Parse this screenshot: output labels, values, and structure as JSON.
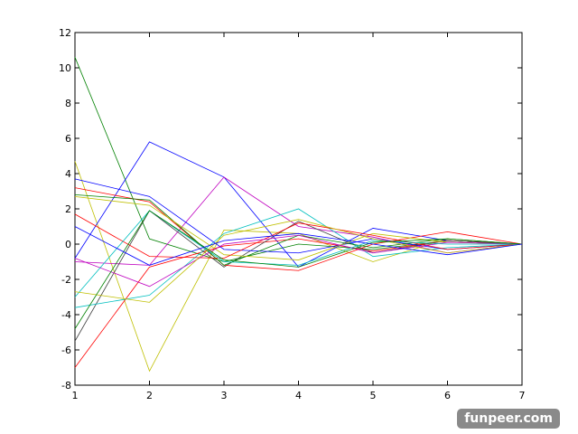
{
  "chart_data": {
    "type": "line",
    "x": [
      1,
      2,
      3,
      4,
      5,
      6,
      7
    ],
    "xlim": [
      1,
      7
    ],
    "xticks": [
      1,
      2,
      3,
      4,
      5,
      6,
      7
    ],
    "ylim": [
      -8,
      12
    ],
    "yticks": [
      -8,
      -6,
      -4,
      -2,
      0,
      2,
      4,
      6,
      8,
      10,
      12
    ],
    "series": [
      {
        "color": "#008000",
        "values": [
          10.6,
          0.3,
          -1.0,
          0.0,
          -0.3,
          0.2,
          0
        ]
      },
      {
        "color": "#bfbf00",
        "values": [
          4.7,
          -7.2,
          0.8,
          0.6,
          -1.0,
          0.3,
          0
        ]
      },
      {
        "color": "#0000ff",
        "values": [
          -0.8,
          5.8,
          3.8,
          -1.3,
          0.9,
          0.2,
          0
        ]
      },
      {
        "color": "#bf00bf",
        "values": [
          -1.0,
          -1.2,
          3.8,
          1.0,
          0.4,
          -0.5,
          0
        ]
      },
      {
        "color": "#ff0000",
        "values": [
          -7.0,
          -1.3,
          -0.1,
          0.3,
          -0.4,
          0.2,
          0
        ]
      },
      {
        "color": "#404040",
        "values": [
          -5.5,
          1.9,
          -1.3,
          1.3,
          -0.5,
          0.2,
          0
        ]
      },
      {
        "color": "#00bfbf",
        "values": [
          -3.6,
          -2.9,
          0.6,
          2.0,
          -0.7,
          -0.2,
          0
        ]
      },
      {
        "color": "#0000ff",
        "values": [
          3.7,
          2.7,
          -0.3,
          -0.5,
          0.3,
          -0.3,
          0
        ]
      },
      {
        "color": "#ff0000",
        "values": [
          3.2,
          2.4,
          -1.2,
          -1.5,
          0.0,
          0.7,
          0
        ]
      },
      {
        "color": "#008000",
        "values": [
          2.8,
          2.5,
          -1.2,
          0.5,
          -0.2,
          0.3,
          0
        ]
      },
      {
        "color": "#bfbf00",
        "values": [
          2.7,
          2.2,
          -0.6,
          -0.9,
          0.6,
          0.1,
          0
        ]
      },
      {
        "color": "#ff0000",
        "values": [
          1.7,
          -0.7,
          -0.8,
          1.2,
          0.5,
          -0.3,
          0
        ]
      },
      {
        "color": "#bf00bf",
        "values": [
          -0.8,
          -2.4,
          0.0,
          0.5,
          -0.5,
          0.1,
          0
        ]
      },
      {
        "color": "#00bfbf",
        "values": [
          -3.0,
          1.9,
          -1.0,
          -1.2,
          0.2,
          0.0,
          0
        ]
      },
      {
        "color": "#bfbf00",
        "values": [
          -2.7,
          -3.3,
          0.5,
          1.4,
          0.3,
          -0.5,
          0
        ]
      },
      {
        "color": "#008000",
        "values": [
          -4.8,
          1.9,
          -0.9,
          -1.3,
          0.1,
          0.3,
          0
        ]
      },
      {
        "color": "#0000ff",
        "values": [
          1.0,
          -1.2,
          0.2,
          0.6,
          0.0,
          -0.6,
          0
        ]
      }
    ]
  },
  "watermark": "funpeer.com"
}
